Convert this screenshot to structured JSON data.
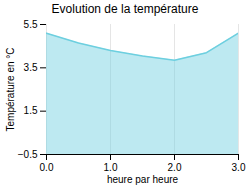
{
  "chart_data": {
    "type": "area",
    "title": "Evolution de la température",
    "x_label": "heure par heure",
    "y_label": "Température en °C",
    "x": [
      0,
      0.5,
      1.0,
      1.5,
      2.0,
      2.5,
      3.0
    ],
    "values": [
      5.1,
      4.65,
      4.3,
      4.05,
      3.85,
      4.2,
      5.1
    ],
    "color": "#6dcfdf",
    "xlim": [
      0,
      3
    ],
    "xticks": [
      0,
      1,
      2,
      3
    ],
    "ylim": [
      -0.5,
      5.5
    ],
    "yticks": [
      -0.5,
      1.5,
      3.5,
      5.5
    ],
    "grid": "x"
  }
}
